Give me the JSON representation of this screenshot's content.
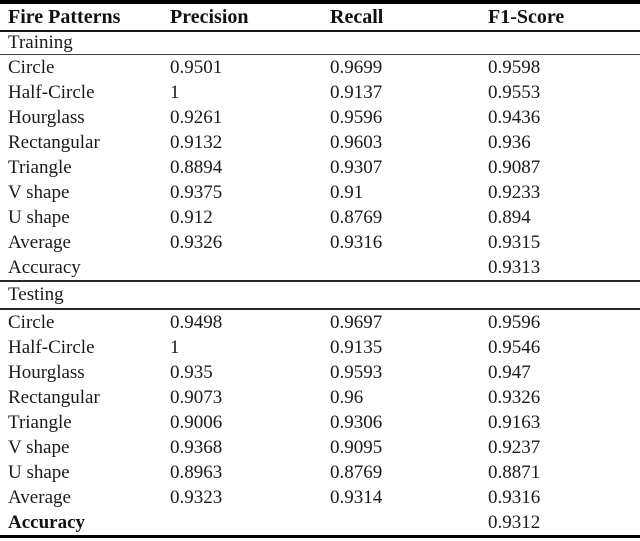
{
  "table": {
    "headers": [
      "Fire Patterns",
      "Precision",
      "Recall",
      "F1-Score"
    ],
    "sections": [
      {
        "label": "Training",
        "rows": [
          {
            "pattern": "Circle",
            "precision": "0.9501",
            "recall": "0.9699",
            "f1": "0.9598"
          },
          {
            "pattern": "Half-Circle",
            "precision": "1",
            "recall": "0.9137",
            "f1": "0.9553"
          },
          {
            "pattern": "Hourglass",
            "precision": "0.9261",
            "recall": "0.9596",
            "f1": "0.9436"
          },
          {
            "pattern": "Rectangular",
            "precision": "0.9132",
            "recall": "0.9603",
            "f1": "0.936"
          },
          {
            "pattern": "Triangle",
            "precision": "0.8894",
            "recall": "0.9307",
            "f1": "0.9087"
          },
          {
            "pattern": "V shape",
            "precision": "0.9375",
            "recall": "0.91",
            "f1": "0.9233"
          },
          {
            "pattern": "U shape",
            "precision": "0.912",
            "recall": "0.8769",
            "f1": "0.894"
          },
          {
            "pattern": "Average",
            "precision": "0.9326",
            "recall": "0.9316",
            "f1": "0.9315"
          },
          {
            "pattern": "Accuracy",
            "precision": "",
            "recall": "",
            "f1": "0.9313"
          }
        ]
      },
      {
        "label": "Testing",
        "rows": [
          {
            "pattern": "Circle",
            "precision": "0.9498",
            "recall": "0.9697",
            "f1": "0.9596"
          },
          {
            "pattern": "Half-Circle",
            "precision": "1",
            "recall": "0.9135",
            "f1": "0.9546"
          },
          {
            "pattern": "Hourglass",
            "precision": "0.935",
            "recall": "0.9593",
            "f1": "0.947"
          },
          {
            "pattern": "Rectangular",
            "precision": "0.9073",
            "recall": "0.96",
            "f1": "0.9326"
          },
          {
            "pattern": "Triangle",
            "precision": "0.9006",
            "recall": "0.9306",
            "f1": "0.9163"
          },
          {
            "pattern": "V shape",
            "precision": "0.9368",
            "recall": "0.9095",
            "f1": "0.9237"
          },
          {
            "pattern": "U shape",
            "precision": "0.8963",
            "recall": "0.8769",
            "f1": "0.8871"
          },
          {
            "pattern": "Average",
            "precision": "0.9323",
            "recall": "0.9314",
            "f1": "0.9316"
          },
          {
            "pattern": "Accuracy",
            "precision": "",
            "recall": "",
            "f1": "0.9312"
          }
        ]
      }
    ]
  }
}
